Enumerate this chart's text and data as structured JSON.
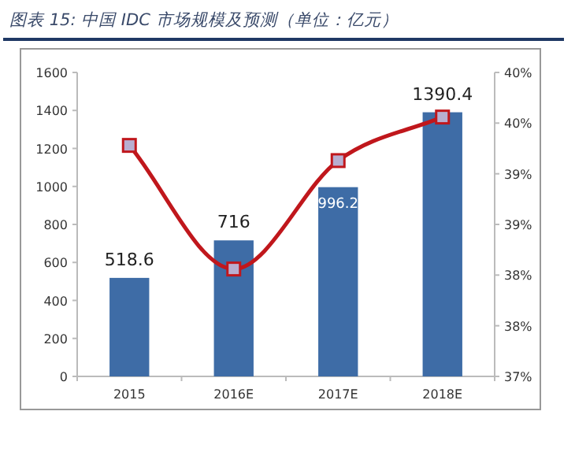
{
  "chart_data": {
    "type": "bar",
    "title": "图表 15: 中国 IDC 市场规模及预测（单位：亿元）",
    "categories": [
      "2015",
      "2016E",
      "2017E",
      "2018E"
    ],
    "series": [
      {
        "color": "#3e6ca6",
        "values": [
          518.6,
          716,
          996.2,
          1390.4
        ],
        "value_labels": [
          "518.6",
          "716",
          "996.2",
          "1390.4"
        ]
      },
      {
        "type": "line",
        "axis": "y2",
        "color": "#c0171c",
        "values": [
          39.28,
          38.06,
          39.13,
          39.56
        ],
        "marker": "square"
      }
    ],
    "ylim": [
      0,
      1600
    ],
    "yticks": [
      0,
      200,
      400,
      600,
      800,
      1000,
      1200,
      1400,
      1600
    ],
    "y2lim": [
      37,
      40
    ],
    "y2ticks": [
      {
        "value": 37,
        "label": "37%"
      },
      {
        "value": 37.5,
        "label": "38%"
      },
      {
        "value": 38,
        "label": "38%"
      },
      {
        "value": 38.5,
        "label": "39%"
      },
      {
        "value": 39,
        "label": "39%"
      },
      {
        "value": 39.5,
        "label": "40%"
      },
      {
        "value": 40,
        "label": "40%"
      }
    ]
  }
}
